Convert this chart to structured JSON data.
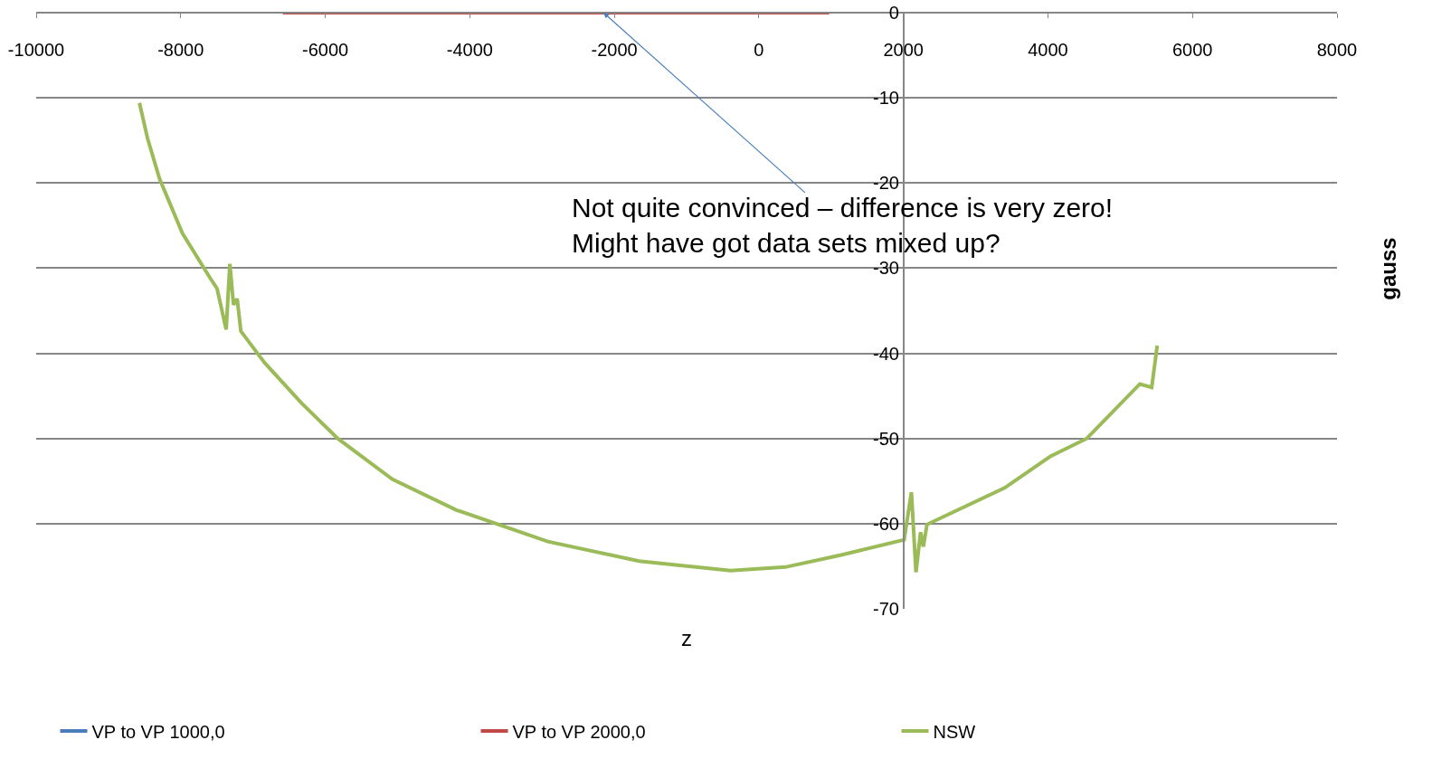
{
  "chart_data": {
    "type": "line",
    "xlabel": "z",
    "ylabel": "gauss",
    "xlim": [
      -10000,
      8000
    ],
    "xticks": [
      -10000,
      -8000,
      -6000,
      -4000,
      -2000,
      0,
      2000,
      4000,
      6000,
      8000
    ],
    "ylim": [
      -70,
      0
    ],
    "yticks": [
      -70,
      -60,
      -50,
      -40,
      -30,
      -20,
      -10,
      0
    ],
    "grid": "y",
    "legend": "bottom",
    "marker": "none",
    "line_style": "solid",
    "series": [
      {
        "name": "VP to VP 1000,0",
        "color": "#4a7ebb",
        "values": [
          null,
          null
        ]
      },
      {
        "name": "VP to VP 2000,0",
        "color": "#be4b48",
        "x": [
          -6587,
          973
        ],
        "values": [
          0,
          0
        ]
      },
      {
        "name": "NSW",
        "color": "#9bbb59",
        "x": [
          -8571,
          -8458,
          -8293,
          -7977,
          -7598,
          -7497,
          -7434,
          -7371,
          -7320,
          -7270,
          -7219,
          -7168,
          -6840,
          -6334,
          -5828,
          -5070,
          -4185,
          -2920,
          -1656,
          -392,
          367,
          1125,
          2010,
          2111,
          2174,
          2238,
          2276,
          2326,
          3401,
          4033,
          4538,
          5272,
          5436,
          5512
        ],
        "values": [
          -10.6,
          -14.8,
          -19.5,
          -25.9,
          -31.1,
          -32.4,
          -34.8,
          -37.2,
          -29.5,
          -34.3,
          -33.6,
          -37.4,
          -41.1,
          -45.8,
          -50.0,
          -54.8,
          -58.4,
          -62.1,
          -64.4,
          -65.5,
          -65.1,
          -63.7,
          -61.9,
          -56.3,
          -65.7,
          -61.0,
          -62.7,
          -60.1,
          -55.8,
          -52.1,
          -50.0,
          -43.6,
          -44.0,
          -39.1
        ]
      }
    ],
    "annotations": [
      {
        "text": "Not quite convinced – difference is very zero!\nMight have got data sets mixed up?",
        "x": -2150,
        "y": 0
      }
    ]
  }
}
